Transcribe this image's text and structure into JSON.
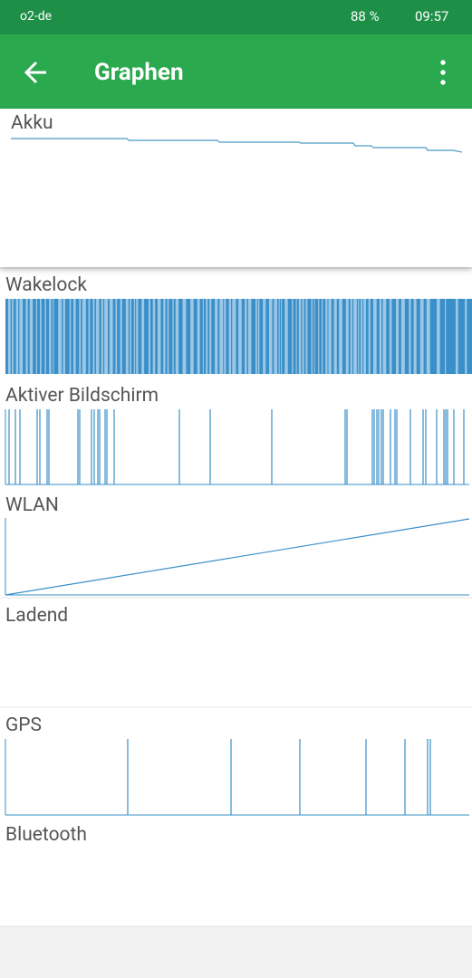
{
  "status_bar": {
    "carrier": "o2-de",
    "battery": "88 %",
    "time": "09:57"
  },
  "app_bar": {
    "title": "Graphen"
  },
  "sections": [
    {
      "label": "Akku"
    },
    {
      "label": "Wakelock"
    },
    {
      "label": "Aktiver Bildschirm"
    },
    {
      "label": "WLAN"
    },
    {
      "label": "Ladend"
    },
    {
      "label": "GPS"
    },
    {
      "label": "Bluetooth"
    }
  ]
}
